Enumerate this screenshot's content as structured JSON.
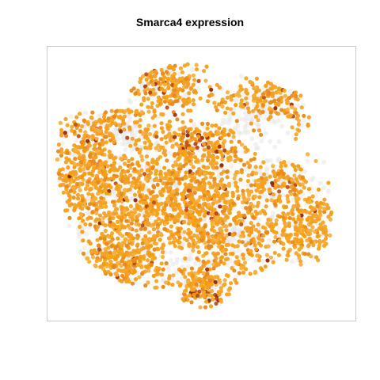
{
  "chart_data": {
    "type": "scatter",
    "title": "Smarca4 expression",
    "xlabel": "",
    "ylabel": "",
    "axes_visible": false,
    "grid": false,
    "legend": "none",
    "color_scale": {
      "zero": "#e6e6e6",
      "low": "#f5a623",
      "mid": "#e8891c",
      "high": "#a32d10"
    },
    "point_count_estimate": 4000,
    "frame_color": "#cccccc"
  }
}
